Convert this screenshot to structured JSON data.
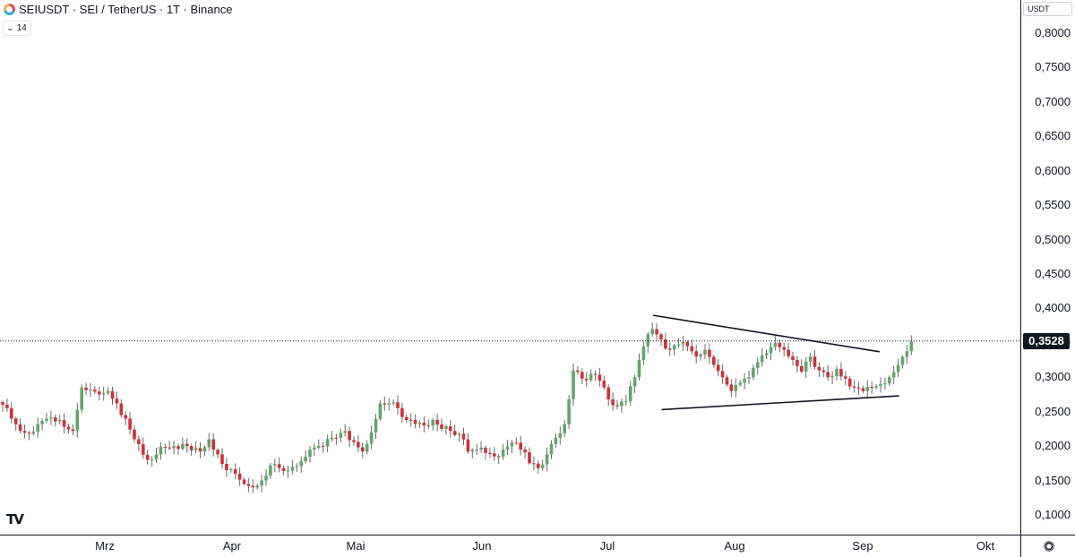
{
  "header": {
    "symbol_title": "SEIUSDT · SEI / TetherUS · 1T · Binance",
    "indicator_value": "14"
  },
  "price_axis": {
    "currency": "USDT",
    "labels": [
      "0,8000",
      "0,7500",
      "0,7000",
      "0,6500",
      "0,6000",
      "0,5500",
      "0,5000",
      "0,4500",
      "0,4000",
      "0,3528",
      "0,3000",
      "0,2500",
      "0,2000",
      "0,1500",
      "0,1000"
    ],
    "last_price": "0,3528"
  },
  "time_axis": {
    "months": [
      "Mrz",
      "Apr",
      "Mai",
      "Jun",
      "Jul",
      "Aug",
      "Sep",
      "Okt"
    ]
  },
  "colors": {
    "up": "#26a69a",
    "up_fill": "#5fa86a",
    "down": "#d32f3a",
    "wick": "#6b6b6b",
    "trendline": "#131722",
    "price_line": "#131722"
  },
  "chart_data": {
    "type": "candlestick",
    "title": "SEIUSDT · SEI / TetherUS · 1T · Binance",
    "ylim": [
      0.08,
      0.82
    ],
    "y_ticks": [
      0.1,
      0.15,
      0.2,
      0.25,
      0.3,
      0.35,
      0.4,
      0.45,
      0.5,
      0.55,
      0.6,
      0.65,
      0.7,
      0.75,
      0.8
    ],
    "x_ticks": [
      "Mrz",
      "Apr",
      "Mai",
      "Jun",
      "Jul",
      "Aug",
      "Sep",
      "Okt"
    ],
    "last_price": 0.3528,
    "close_path": [
      [
        0,
        0.26
      ],
      [
        2,
        0.24
      ],
      [
        4,
        0.222
      ],
      [
        6,
        0.218
      ],
      [
        8,
        0.232
      ],
      [
        10,
        0.24
      ],
      [
        12,
        0.236
      ],
      [
        14,
        0.228
      ],
      [
        16,
        0.222
      ],
      [
        18,
        0.285
      ],
      [
        20,
        0.282
      ],
      [
        22,
        0.275
      ],
      [
        24,
        0.28
      ],
      [
        26,
        0.262
      ],
      [
        28,
        0.24
      ],
      [
        30,
        0.21
      ],
      [
        33,
        0.18
      ],
      [
        35,
        0.188
      ],
      [
        37,
        0.198
      ],
      [
        40,
        0.196
      ],
      [
        42,
        0.2
      ],
      [
        45,
        0.192
      ],
      [
        47,
        0.21
      ],
      [
        49,
        0.188
      ],
      [
        51,
        0.165
      ],
      [
        53,
        0.16
      ],
      [
        55,
        0.145
      ],
      [
        57,
        0.14
      ],
      [
        59,
        0.15
      ],
      [
        61,
        0.172
      ],
      [
        63,
        0.168
      ],
      [
        66,
        0.17
      ],
      [
        68,
        0.178
      ],
      [
        70,
        0.195
      ],
      [
        72,
        0.2
      ],
      [
        74,
        0.21
      ],
      [
        76,
        0.212
      ],
      [
        78,
        0.222
      ],
      [
        80,
        0.206
      ],
      [
        82,
        0.192
      ],
      [
        84,
        0.22
      ],
      [
        86,
        0.262
      ],
      [
        88,
        0.262
      ],
      [
        90,
        0.255
      ],
      [
        92,
        0.238
      ],
      [
        94,
        0.232
      ],
      [
        96,
        0.23
      ],
      [
        98,
        0.238
      ],
      [
        100,
        0.225
      ],
      [
        102,
        0.222
      ],
      [
        104,
        0.218
      ],
      [
        106,
        0.192
      ],
      [
        108,
        0.195
      ],
      [
        110,
        0.19
      ],
      [
        112,
        0.185
      ],
      [
        114,
        0.195
      ],
      [
        116,
        0.205
      ],
      [
        118,
        0.195
      ],
      [
        120,
        0.175
      ],
      [
        122,
        0.168
      ],
      [
        124,
        0.188
      ],
      [
        126,
        0.212
      ],
      [
        128,
        0.232
      ],
      [
        130,
        0.31
      ],
      [
        132,
        0.298
      ],
      [
        134,
        0.305
      ],
      [
        136,
        0.295
      ],
      [
        138,
        0.268
      ],
      [
        140,
        0.258
      ],
      [
        142,
        0.265
      ],
      [
        144,
        0.3
      ],
      [
        146,
        0.345
      ],
      [
        148,
        0.37
      ],
      [
        150,
        0.355
      ],
      [
        152,
        0.34
      ],
      [
        154,
        0.348
      ],
      [
        156,
        0.345
      ],
      [
        158,
        0.33
      ],
      [
        160,
        0.34
      ],
      [
        162,
        0.318
      ],
      [
        164,
        0.3
      ],
      [
        166,
        0.28
      ],
      [
        168,
        0.292
      ],
      [
        170,
        0.3
      ],
      [
        172,
        0.322
      ],
      [
        174,
        0.335
      ],
      [
        176,
        0.35
      ],
      [
        178,
        0.34
      ],
      [
        180,
        0.325
      ],
      [
        182,
        0.308
      ],
      [
        184,
        0.33
      ],
      [
        186,
        0.31
      ],
      [
        188,
        0.3
      ],
      [
        190,
        0.312
      ],
      [
        192,
        0.298
      ],
      [
        194,
        0.285
      ],
      [
        196,
        0.28
      ],
      [
        198,
        0.285
      ],
      [
        200,
        0.29
      ],
      [
        202,
        0.3
      ],
      [
        204,
        0.318
      ],
      [
        206,
        0.338
      ],
      [
        207,
        0.352
      ]
    ],
    "annotations": {
      "upper_trendline": [
        [
          148.2,
          0.39
        ],
        [
          199.8,
          0.337
        ]
      ],
      "lower_trendline": [
        [
          150.1,
          0.253
        ],
        [
          204.2,
          0.273
        ]
      ]
    }
  }
}
